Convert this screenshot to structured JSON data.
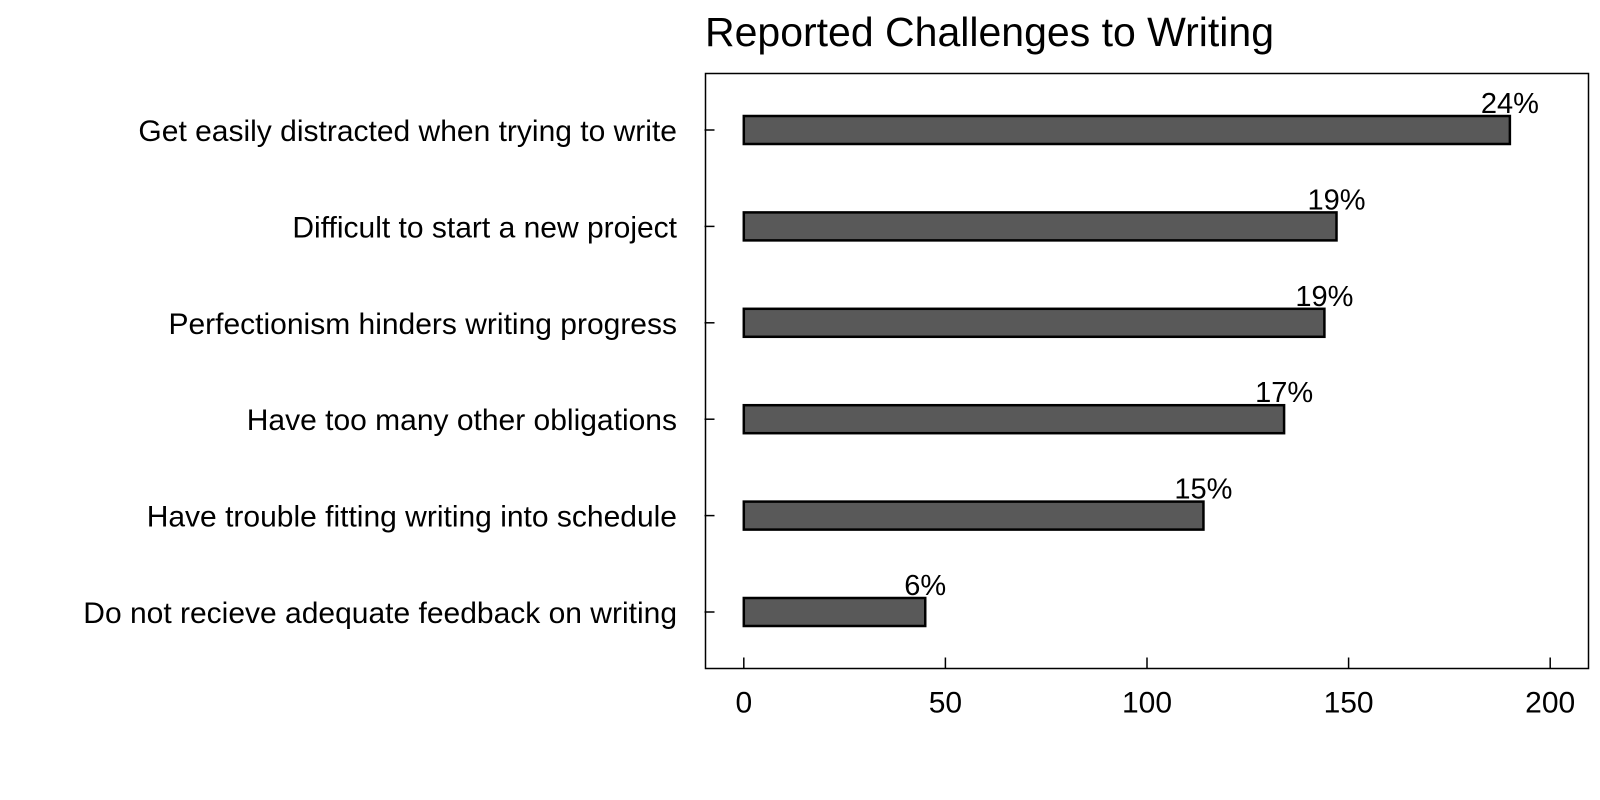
{
  "chart_data": {
    "type": "bar",
    "orientation": "horizontal",
    "title": "Reported Challenges to Writing",
    "xlabel": "",
    "ylabel": "",
    "categories": [
      "Get easily distracted when trying to write",
      "Difficult to start a new project",
      "Perfectionism hinders writing progress",
      "Have too many other obligations",
      "Have trouble fitting writing into schedule",
      "Do not recieve adequate feedback on writing"
    ],
    "values": [
      190,
      147,
      144,
      134,
      114,
      45
    ],
    "data_labels": [
      "24%",
      "19%",
      "19%",
      "17%",
      "15%",
      "6%"
    ],
    "xlim": [
      -9.5,
      209.5
    ],
    "xticks": [
      0,
      50,
      100,
      150,
      200
    ],
    "xtick_labels": [
      "0",
      "50",
      "100",
      "150",
      "200"
    ],
    "bar_color": "#595959",
    "grid": false,
    "legend": "none"
  }
}
